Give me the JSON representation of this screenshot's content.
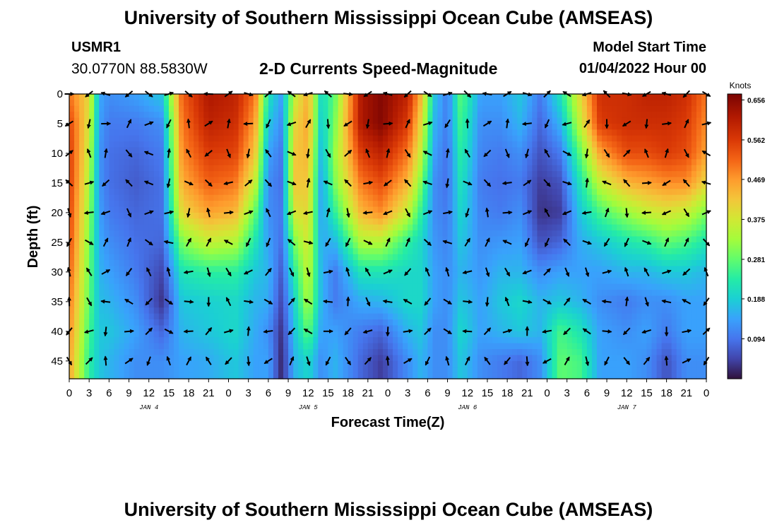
{
  "header": {
    "title": "University of Southern Mississippi Ocean Cube (AMSEAS)",
    "station_id": "USMR1",
    "coordinates": "30.0770N  88.5830W",
    "plot_title": "2-D Currents Speed-Magnitude",
    "model_start_label": "Model Start Time",
    "model_start_value": "01/04/2022 Hour 00"
  },
  "footer": {
    "title": "University of Southern Mississippi Ocean Cube (AMSEAS)"
  },
  "chart_data": {
    "type": "heatmap",
    "title": "2-D Currents Speed-Magnitude",
    "xlabel": "Forecast Time(Z)",
    "ylabel": "Depth (ft)",
    "x_range_hours": [
      0,
      96
    ],
    "x_ticks": [
      "0",
      "3",
      "6",
      "9",
      "12",
      "15",
      "18",
      "21",
      "0",
      "3",
      "6",
      "9",
      "12",
      "15",
      "18",
      "21",
      "0",
      "3",
      "6",
      "9",
      "12",
      "15",
      "18",
      "21",
      "0",
      "3",
      "6",
      "9",
      "12",
      "15",
      "18",
      "21",
      "0"
    ],
    "date_labels": [
      {
        "label": "JAN 4",
        "hour": 12
      },
      {
        "label": "JAN 5",
        "hour": 36
      },
      {
        "label": "JAN 6",
        "hour": 60
      },
      {
        "label": "JAN 7",
        "hour": 84
      }
    ],
    "y_ticks": [
      0,
      5,
      10,
      15,
      20,
      25,
      30,
      35,
      40,
      45
    ],
    "ylim": [
      0,
      48
    ],
    "y_inverted": true,
    "colorbar": {
      "label": "Knots",
      "ticks": [
        "0.656",
        "0.562",
        "0.469",
        "0.375",
        "0.281",
        "0.188",
        "0.094"
      ],
      "min": 0,
      "max": 0.67
    },
    "vector_columns_hours": [
      0,
      3,
      5.5,
      9,
      12,
      15,
      18,
      21,
      24,
      27,
      30,
      33.5,
      36,
      39,
      42,
      45,
      48,
      51,
      54,
      57,
      60,
      63,
      66,
      69,
      72,
      75,
      78,
      81,
      84,
      87,
      90,
      93,
      96
    ],
    "vector_depths_ft": [
      0,
      5,
      10,
      15,
      20,
      25,
      30,
      35,
      40,
      45
    ],
    "speed_key_columns": [
      {
        "hour": 0,
        "profile": [
          0.5,
          0.55,
          0.56,
          0.56,
          0.55,
          0.54,
          0.52,
          0.5,
          0.48,
          0.46
        ]
      },
      {
        "hour": 3,
        "profile": [
          0.4,
          0.38,
          0.36,
          0.34,
          0.32,
          0.3,
          0.29,
          0.28,
          0.26,
          0.24
        ]
      },
      {
        "hour": 4.5,
        "profile": [
          0.15,
          0.14,
          0.13,
          0.13,
          0.14,
          0.15,
          0.16,
          0.17,
          0.18,
          0.18
        ]
      },
      {
        "hour": 6,
        "profile": [
          0.12,
          0.1,
          0.09,
          0.09,
          0.1,
          0.12,
          0.14,
          0.16,
          0.18,
          0.16
        ]
      },
      {
        "hour": 10,
        "profile": [
          0.14,
          0.1,
          0.08,
          0.07,
          0.08,
          0.09,
          0.1,
          0.12,
          0.14,
          0.12
        ]
      },
      {
        "hour": 14,
        "profile": [
          0.18,
          0.12,
          0.1,
          0.09,
          0.09,
          0.08,
          0.05,
          0.03,
          0.08,
          0.12
        ]
      },
      {
        "hour": 17,
        "profile": [
          0.52,
          0.5,
          0.48,
          0.45,
          0.4,
          0.3,
          0.22,
          0.18,
          0.16,
          0.14
        ]
      },
      {
        "hour": 21,
        "profile": [
          0.62,
          0.6,
          0.56,
          0.52,
          0.46,
          0.36,
          0.24,
          0.19,
          0.18,
          0.15
        ]
      },
      {
        "hour": 25,
        "profile": [
          0.6,
          0.58,
          0.55,
          0.5,
          0.44,
          0.34,
          0.24,
          0.2,
          0.2,
          0.18
        ]
      },
      {
        "hour": 28,
        "profile": [
          0.5,
          0.46,
          0.42,
          0.36,
          0.28,
          0.22,
          0.18,
          0.16,
          0.15,
          0.14
        ]
      },
      {
        "hour": 30,
        "profile": [
          0.22,
          0.18,
          0.14,
          0.12,
          0.12,
          0.14,
          0.16,
          0.15,
          0.12,
          0.14
        ]
      },
      {
        "hour": 32,
        "profile": [
          0.14,
          0.12,
          0.1,
          0.09,
          0.1,
          0.09,
          0.07,
          0.05,
          0.03,
          0.02
        ]
      },
      {
        "hour": 34,
        "profile": [
          0.36,
          0.4,
          0.42,
          0.42,
          0.38,
          0.3,
          0.24,
          0.2,
          0.18,
          0.16
        ]
      },
      {
        "hour": 36,
        "profile": [
          0.45,
          0.46,
          0.44,
          0.42,
          0.4,
          0.38,
          0.36,
          0.34,
          0.28,
          0.2
        ]
      },
      {
        "hour": 38,
        "profile": [
          0.2,
          0.18,
          0.16,
          0.14,
          0.14,
          0.15,
          0.16,
          0.16,
          0.14,
          0.12
        ]
      },
      {
        "hour": 40,
        "profile": [
          0.28,
          0.3,
          0.32,
          0.3,
          0.24,
          0.16,
          0.1,
          0.1,
          0.14,
          0.16
        ]
      },
      {
        "hour": 44,
        "profile": [
          0.62,
          0.62,
          0.56,
          0.5,
          0.44,
          0.34,
          0.22,
          0.15,
          0.1,
          0.08
        ]
      },
      {
        "hour": 47,
        "profile": [
          0.66,
          0.66,
          0.6,
          0.54,
          0.48,
          0.34,
          0.22,
          0.16,
          0.08,
          0.04
        ]
      },
      {
        "hour": 51,
        "profile": [
          0.6,
          0.56,
          0.5,
          0.44,
          0.36,
          0.24,
          0.2,
          0.2,
          0.16,
          0.12
        ]
      },
      {
        "hour": 53,
        "profile": [
          0.44,
          0.4,
          0.36,
          0.3,
          0.24,
          0.2,
          0.2,
          0.2,
          0.18,
          0.16
        ]
      },
      {
        "hour": 55,
        "profile": [
          0.18,
          0.16,
          0.14,
          0.12,
          0.12,
          0.13,
          0.14,
          0.14,
          0.12,
          0.12
        ]
      },
      {
        "hour": 57,
        "profile": [
          0.1,
          0.1,
          0.09,
          0.09,
          0.1,
          0.11,
          0.12,
          0.12,
          0.12,
          0.12
        ]
      },
      {
        "hour": 59,
        "profile": [
          0.28,
          0.26,
          0.24,
          0.22,
          0.2,
          0.18,
          0.16,
          0.18,
          0.2,
          0.18
        ]
      },
      {
        "hour": 62,
        "profile": [
          0.14,
          0.12,
          0.11,
          0.1,
          0.11,
          0.12,
          0.13,
          0.14,
          0.14,
          0.12
        ]
      },
      {
        "hour": 65,
        "profile": [
          0.14,
          0.12,
          0.1,
          0.09,
          0.1,
          0.13,
          0.16,
          0.18,
          0.16,
          0.1
        ]
      },
      {
        "hour": 68,
        "profile": [
          0.18,
          0.16,
          0.12,
          0.1,
          0.12,
          0.14,
          0.16,
          0.2,
          0.18,
          0.08
        ]
      },
      {
        "hour": 71,
        "profile": [
          0.1,
          0.08,
          0.06,
          0.04,
          0.03,
          0.06,
          0.12,
          0.16,
          0.16,
          0.12
        ]
      },
      {
        "hour": 74,
        "profile": [
          0.22,
          0.16,
          0.1,
          0.06,
          0.04,
          0.08,
          0.14,
          0.18,
          0.26,
          0.28
        ]
      },
      {
        "hour": 77,
        "profile": [
          0.4,
          0.36,
          0.28,
          0.22,
          0.18,
          0.15,
          0.14,
          0.16,
          0.22,
          0.26
        ]
      },
      {
        "hour": 80,
        "profile": [
          0.58,
          0.56,
          0.46,
          0.36,
          0.26,
          0.18,
          0.14,
          0.12,
          0.14,
          0.14
        ]
      },
      {
        "hour": 84,
        "profile": [
          0.58,
          0.58,
          0.54,
          0.44,
          0.32,
          0.22,
          0.16,
          0.1,
          0.12,
          0.14
        ]
      },
      {
        "hour": 87,
        "profile": [
          0.6,
          0.58,
          0.54,
          0.46,
          0.36,
          0.24,
          0.16,
          0.12,
          0.14,
          0.12
        ]
      },
      {
        "hour": 90,
        "profile": [
          0.6,
          0.58,
          0.56,
          0.48,
          0.38,
          0.28,
          0.18,
          0.12,
          0.1,
          0.06
        ]
      },
      {
        "hour": 93,
        "profile": [
          0.58,
          0.56,
          0.54,
          0.48,
          0.36,
          0.26,
          0.18,
          0.14,
          0.14,
          0.12
        ]
      },
      {
        "hour": 96,
        "profile": [
          0.5,
          0.48,
          0.46,
          0.4,
          0.3,
          0.22,
          0.16,
          0.14,
          0.14,
          0.12
        ]
      }
    ]
  }
}
